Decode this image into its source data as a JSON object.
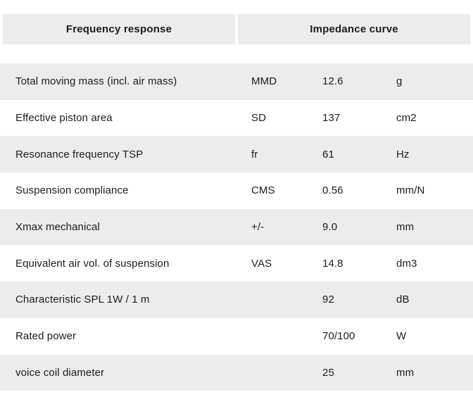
{
  "header": {
    "tabs": [
      {
        "label": "Frequency response"
      },
      {
        "label": "Impedance curve"
      }
    ]
  },
  "table": {
    "rows": [
      {
        "label": "Total moving mass (incl. air mass)",
        "symbol": "MMD",
        "value": "12.6",
        "unit": "g"
      },
      {
        "label": "Effective piston area",
        "symbol": "SD",
        "value": "137",
        "unit": "cm2"
      },
      {
        "label": "Resonance frequency TSP",
        "symbol": "fr",
        "value": "61",
        "unit": "Hz"
      },
      {
        "label": "Suspension compliance",
        "symbol": "CMS",
        "value": "0.56",
        "unit": "mm/N"
      },
      {
        "label": "Xmax mechanical",
        "symbol": "+/-",
        "value": "9.0",
        "unit": "mm"
      },
      {
        "label": "Equivalent air vol. of suspension",
        "symbol": "VAS",
        "value": "14.8",
        "unit": "dm3"
      },
      {
        "label": "Characteristic SPL 1W / 1 m",
        "symbol": "",
        "value": "92",
        "unit": "dB"
      },
      {
        "label": "Rated power",
        "symbol": "",
        "value": "70/100",
        "unit": "W"
      },
      {
        "label": "voice coil diameter",
        "symbol": "",
        "value": "25",
        "unit": "mm"
      }
    ]
  },
  "colors": {
    "row_alt_bg": "#ececec",
    "header_bg": "#ececec",
    "text": "#1c1c1c"
  }
}
